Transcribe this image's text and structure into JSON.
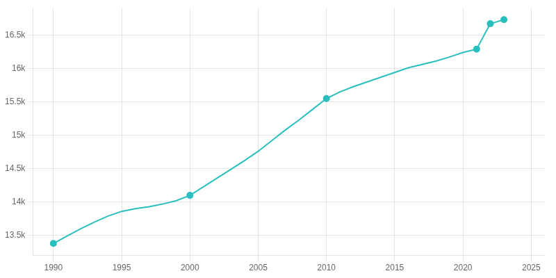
{
  "chart_data": {
    "type": "line",
    "x": [
      1990,
      1991,
      1992,
      1993,
      1994,
      1995,
      1996,
      1997,
      1998,
      1999,
      2000,
      2001,
      2002,
      2003,
      2004,
      2005,
      2006,
      2007,
      2008,
      2009,
      2010,
      2011,
      2012,
      2013,
      2014,
      2015,
      2016,
      2017,
      2018,
      2019,
      2020,
      2021,
      2022,
      2023
    ],
    "series": [
      {
        "color": "#29bfbf",
        "marker": "none",
        "values": [
          13380,
          13490,
          13600,
          13700,
          13790,
          13860,
          13900,
          13930,
          13970,
          14020,
          14100,
          14230,
          14360,
          14490,
          14620,
          14760,
          14920,
          15080,
          15230,
          15390,
          15550,
          15650,
          15730,
          15800,
          15870,
          15940,
          16010,
          16060,
          16110,
          16170,
          16240,
          16290,
          16670,
          16730
        ]
      },
      {
        "type": "scatter",
        "color": "#29bfbf",
        "marker": "circle",
        "x": [
          1990,
          2000,
          2010,
          2021,
          2022,
          2023
        ],
        "values": [
          13380,
          14100,
          15550,
          16290,
          16670,
          16730
        ]
      }
    ],
    "xlim": [
      1988.5,
      2026
    ],
    "xticks": [
      1990,
      1995,
      2000,
      2005,
      2010,
      2015,
      2020,
      2025
    ],
    "ylim": [
      13200,
      16900
    ],
    "yticks": [
      {
        "value": 13500,
        "label": "13.5k"
      },
      {
        "value": 14000,
        "label": "14k"
      },
      {
        "value": 14500,
        "label": "14.5k"
      },
      {
        "value": 15000,
        "label": "15k"
      },
      {
        "value": 15500,
        "label": "15.5k"
      },
      {
        "value": 16000,
        "label": "16k"
      },
      {
        "value": 16500,
        "label": "16.5k"
      }
    ],
    "grid": true
  }
}
